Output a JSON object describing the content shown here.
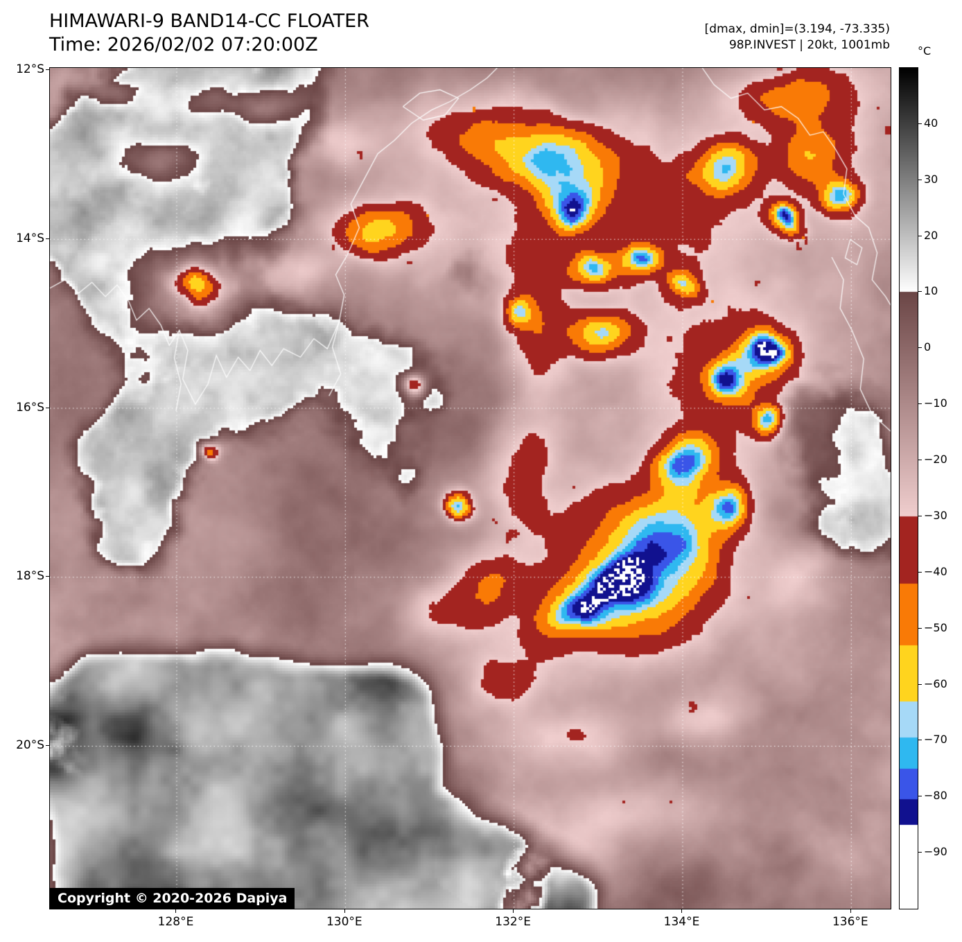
{
  "header": {
    "title": "HIMAWARI-9 BAND14-CC FLOATER",
    "time": "Time: 2026/02/02 07:20:00Z",
    "dmax_dmin": "[dmax, dmin]=(3.194, -73.335)",
    "storm": "98P.INVEST | 20kt, 1001mb"
  },
  "colorbar": {
    "unit_label": "°C",
    "top_value": 50,
    "bottom_value": -100,
    "ticks": [
      {
        "label": "40",
        "value": 40
      },
      {
        "label": "30",
        "value": 30
      },
      {
        "label": "20",
        "value": 20
      },
      {
        "label": "10",
        "value": 10
      },
      {
        "label": "0",
        "value": 0
      },
      {
        "label": "−10",
        "value": -10
      },
      {
        "label": "−20",
        "value": -20
      },
      {
        "label": "−30",
        "value": -30
      },
      {
        "label": "−40",
        "value": -40
      },
      {
        "label": "−50",
        "value": -50
      },
      {
        "label": "−60",
        "value": -60
      },
      {
        "label": "−70",
        "value": -70
      },
      {
        "label": "−80",
        "value": -80
      },
      {
        "label": "−90",
        "value": -90
      }
    ]
  },
  "axes": {
    "lat_ticks": [
      {
        "label": "12°S",
        "value": 12
      },
      {
        "label": "14°S",
        "value": 14
      },
      {
        "label": "16°S",
        "value": 16
      },
      {
        "label": "18°S",
        "value": 18
      },
      {
        "label": "20°S",
        "value": 20
      }
    ],
    "lon_ticks": [
      {
        "label": "128°E",
        "value": 128
      },
      {
        "label": "130°E",
        "value": 130
      },
      {
        "label": "132°E",
        "value": 132
      },
      {
        "label": "134°E",
        "value": 134
      },
      {
        "label": "136°E",
        "value": 136
      }
    ],
    "lon_min": 126.5,
    "lon_max": 136.47,
    "lat_min": 11.975,
    "lat_max": 21.928
  },
  "palette": {
    "warm_grayscale": {
      "white_at": 10,
      "black_at": 50
    },
    "pink_ramp": {
      "from_t": 10,
      "from_hex": "#6B4646",
      "to_t": -30,
      "to_hex": "#F0CECE"
    },
    "cold_bands": [
      {
        "min": -42,
        "hex": "#A32420",
        "name": "dark-red"
      },
      {
        "min": -53,
        "hex": "#F97A06",
        "name": "orange"
      },
      {
        "min": -63,
        "hex": "#FFD41E",
        "name": "yellow"
      },
      {
        "min": -69.5,
        "hex": "#A6D9F7",
        "name": "light-blue"
      },
      {
        "min": -75,
        "hex": "#2FB8F0",
        "name": "cyan"
      },
      {
        "min": -80.5,
        "hex": "#3A55E8",
        "name": "blue"
      },
      {
        "min": -85,
        "hex": "#11118F",
        "name": "navy"
      },
      {
        "min": -200,
        "hex": "#FFFFFF",
        "name": "white"
      }
    ]
  },
  "copyright": "Copyright © 2020-2026 Dapiya"
}
